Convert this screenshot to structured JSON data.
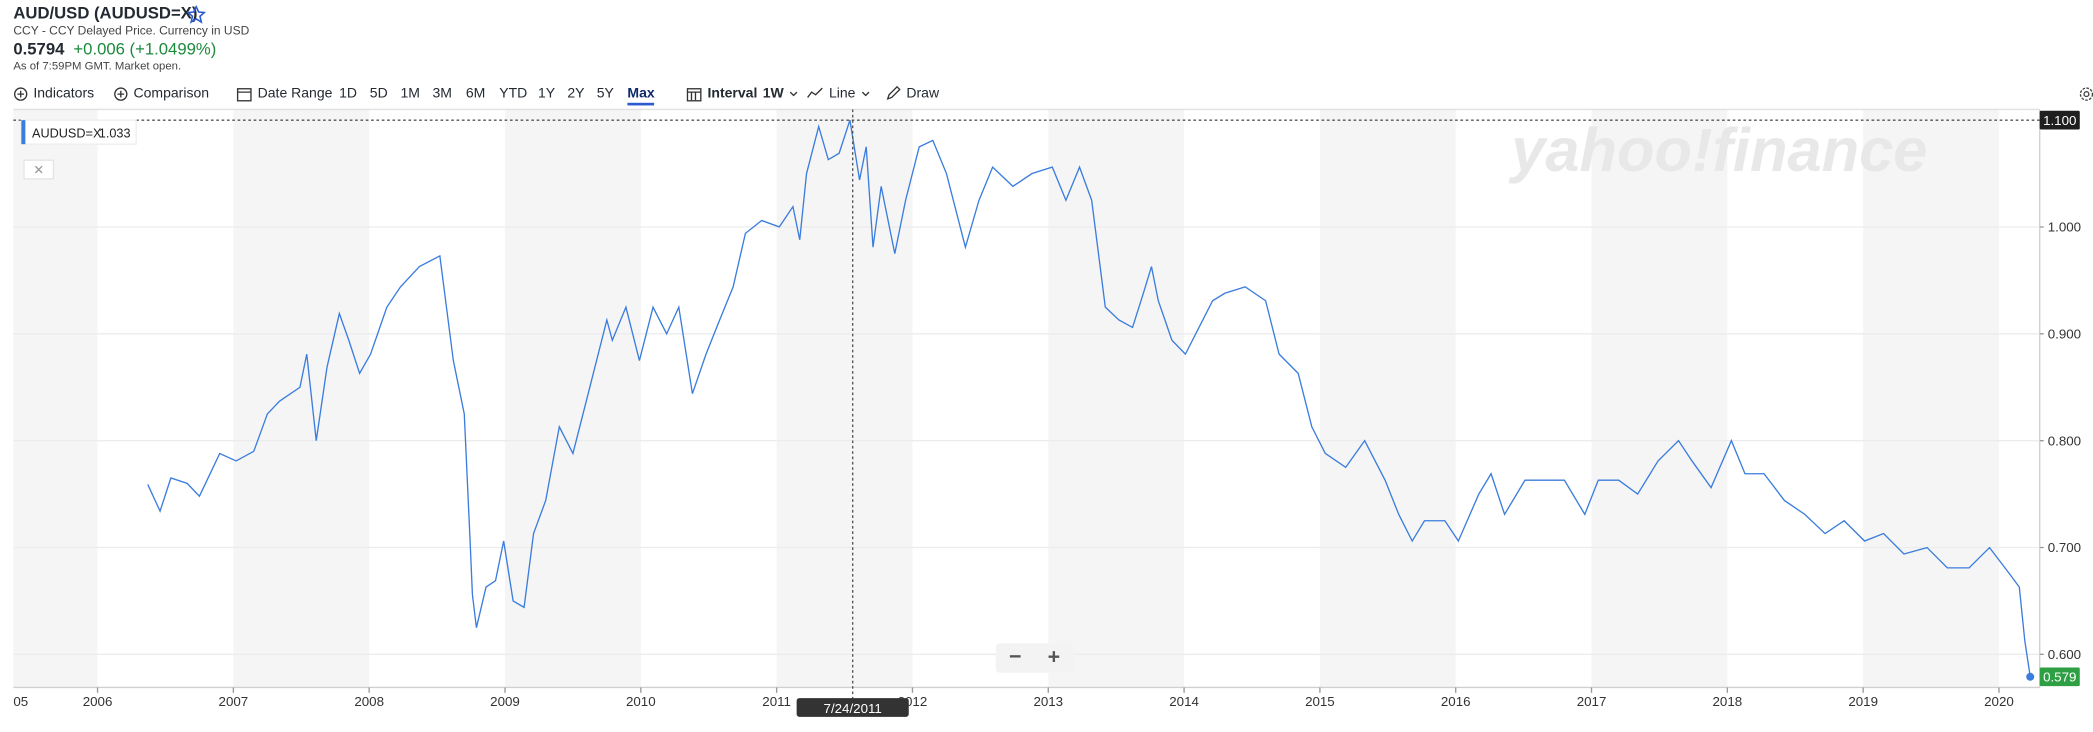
{
  "header": {
    "title": "AUD/USD (AUDUSD=X)",
    "subtitle": "CCY - CCY Delayed Price. Currency in USD",
    "price": "0.5794",
    "change": "+0.006 (+1.0499%)",
    "as_of": "As of 7:59PM GMT. Market open."
  },
  "toolbar": {
    "indicators": "Indicators",
    "comparison": "Comparison",
    "date_range": "Date Range",
    "ranges": [
      "1D",
      "5D",
      "1M",
      "3M",
      "6M",
      "YTD",
      "1Y",
      "2Y",
      "5Y",
      "Max"
    ],
    "interval_label": "Interval",
    "interval": "1W",
    "chart_type": "Line",
    "draw": "Draw"
  },
  "watermark": "yahoo!finance",
  "chart_data": {
    "type": "line",
    "series": [
      {
        "name": "AUDUSD=X",
        "color": "#3b7ddd",
        "x": [
          2006.37,
          2006.46,
          2006.54,
          2006.66,
          2006.75,
          2006.9,
          2007.02,
          2007.15,
          2007.25,
          2007.34,
          2007.49,
          2007.54,
          2007.61,
          2007.69,
          2007.78,
          2007.85,
          2007.93,
          2008.01,
          2008.13,
          2008.23,
          2008.37,
          2008.52,
          2008.62,
          2008.7,
          2008.74,
          2008.76,
          2008.79,
          2008.86,
          2008.93,
          2008.99,
          2009.06,
          2009.14,
          2009.21,
          2009.3,
          2009.4,
          2009.5,
          2009.6,
          2009.75,
          2009.79,
          2009.89,
          2009.99,
          2010.09,
          2010.19,
          2010.28,
          2010.38,
          2010.48,
          2010.58,
          2010.68,
          2010.77,
          2010.89,
          2011.02,
          2011.12,
          2011.17,
          2011.22,
          2011.31,
          2011.38,
          2011.46,
          2011.54,
          2011.61,
          2011.66,
          2011.71,
          2011.77,
          2011.87,
          2011.95,
          2012.05,
          2012.15,
          2012.25,
          2012.39,
          2012.49,
          2012.59,
          2012.74,
          2012.88,
          2013.03,
          2013.13,
          2013.23,
          2013.32,
          2013.42,
          2013.52,
          2013.62,
          2013.7,
          2013.76,
          2013.81,
          2013.91,
          2014.01,
          2014.11,
          2014.21,
          2014.3,
          2014.45,
          2014.6,
          2014.7,
          2014.84,
          2014.94,
          2015.04,
          2015.19,
          2015.33,
          2015.48,
          2015.58,
          2015.68,
          2015.77,
          2015.92,
          2016.02,
          2016.17,
          2016.26,
          2016.36,
          2016.51,
          2016.66,
          2016.8,
          2016.95,
          2017.05,
          2017.2,
          2017.34,
          2017.49,
          2017.64,
          2017.74,
          2017.88,
          2018.03,
          2018.13,
          2018.27,
          2018.42,
          2018.57,
          2018.72,
          2018.86,
          2019.01,
          2019.15,
          2019.3,
          2019.47,
          2019.62,
          2019.78,
          2019.93,
          2020.08,
          2020.15,
          2020.19,
          2020.23
        ],
        "values": [
          0.759,
          0.734,
          0.765,
          0.76,
          0.748,
          0.788,
          0.781,
          0.79,
          0.825,
          0.837,
          0.85,
          0.881,
          0.8,
          0.869,
          0.919,
          0.894,
          0.863,
          0.881,
          0.925,
          0.944,
          0.963,
          0.973,
          0.875,
          0.825,
          0.713,
          0.656,
          0.625,
          0.663,
          0.669,
          0.706,
          0.65,
          0.644,
          0.713,
          0.744,
          0.813,
          0.788,
          0.838,
          0.913,
          0.894,
          0.925,
          0.875,
          0.925,
          0.9,
          0.925,
          0.844,
          0.881,
          0.913,
          0.944,
          0.994,
          1.006,
          1.0,
          1.019,
          0.988,
          1.05,
          1.094,
          1.063,
          1.069,
          1.1,
          1.044,
          1.075,
          0.981,
          1.038,
          0.975,
          1.025,
          1.075,
          1.081,
          1.05,
          0.981,
          1.025,
          1.056,
          1.038,
          1.05,
          1.056,
          1.025,
          1.056,
          1.025,
          0.925,
          0.913,
          0.906,
          0.938,
          0.963,
          0.931,
          0.894,
          0.881,
          0.906,
          0.931,
          0.938,
          0.944,
          0.931,
          0.881,
          0.863,
          0.813,
          0.788,
          0.775,
          0.8,
          0.763,
          0.731,
          0.706,
          0.725,
          0.725,
          0.706,
          0.75,
          0.769,
          0.731,
          0.763,
          0.763,
          0.763,
          0.731,
          0.763,
          0.763,
          0.75,
          0.781,
          0.8,
          0.781,
          0.756,
          0.8,
          0.769,
          0.769,
          0.744,
          0.731,
          0.713,
          0.725,
          0.706,
          0.713,
          0.694,
          0.7,
          0.681,
          0.681,
          0.7,
          0.675,
          0.663,
          0.613,
          0.579
        ]
      }
    ],
    "xlim": [
      2005.38,
      2020.3
    ],
    "xticks": [
      {
        "value": 2005,
        "label": "05"
      },
      2006,
      2007,
      2008,
      2009,
      2010,
      2011,
      2012,
      2013,
      2014,
      2015,
      2016,
      2017,
      2018,
      2019,
      2020
    ],
    "ylim": [
      0.569,
      1.11
    ],
    "yticks": [
      {
        "value": 0.6,
        "label": "0.600"
      },
      {
        "value": 0.7,
        "label": "0.700"
      },
      {
        "value": 0.8,
        "label": "0.800"
      },
      {
        "value": 0.9,
        "label": "0.900"
      },
      {
        "value": 1.0,
        "label": "1.000"
      }
    ],
    "grid": true,
    "last_price": 0.579,
    "last_color": "#2ea043",
    "crosshair": {
      "x": 2011.56,
      "x_label": "7/24/2011",
      "y": {
        "value": 1.1,
        "label": "1.100"
      }
    },
    "tooltip": {
      "value": 1.033
    }
  }
}
